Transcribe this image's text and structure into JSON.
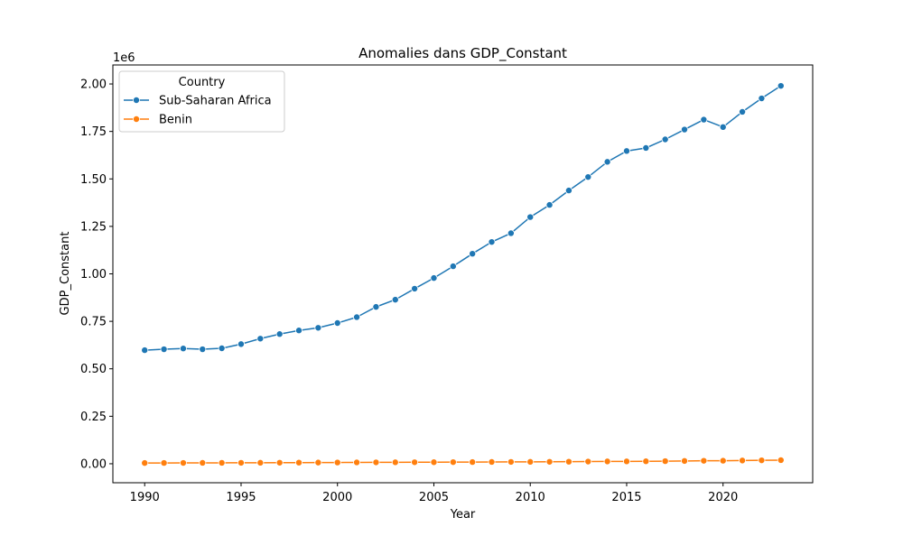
{
  "chart_data": {
    "type": "line",
    "title": "Anomalies dans GDP_Constant",
    "xlabel": "Year",
    "ylabel": "GDP_Constant",
    "y_offset_label": "1e6",
    "y_scale_factor": 1000000,
    "xlim": [
      1988.35,
      2024.65
    ],
    "ylim": [
      -0.1,
      2.1
    ],
    "x_ticks": [
      1990,
      1995,
      2000,
      2005,
      2010,
      2015,
      2020
    ],
    "y_ticks": [
      0.0,
      0.25,
      0.5,
      0.75,
      1.0,
      1.25,
      1.5,
      1.75,
      2.0
    ],
    "y_tick_labels": [
      "0.00",
      "0.25",
      "0.50",
      "0.75",
      "1.00",
      "1.25",
      "1.50",
      "1.75",
      "2.00"
    ],
    "grid": false,
    "legend": {
      "title": "Country",
      "placement": "top-left"
    },
    "x": [
      1990,
      1991,
      1992,
      1993,
      1994,
      1995,
      1996,
      1997,
      1998,
      1999,
      2000,
      2001,
      2002,
      2003,
      2004,
      2005,
      2006,
      2007,
      2008,
      2009,
      2010,
      2011,
      2012,
      2013,
      2014,
      2015,
      2016,
      2017,
      2018,
      2019,
      2020,
      2021,
      2022,
      2023
    ],
    "series": [
      {
        "name": "Sub-Saharan Africa",
        "color": "#1f77b4",
        "values": [
          0.598,
          0.603,
          0.607,
          0.603,
          0.608,
          0.63,
          0.659,
          0.683,
          0.702,
          0.716,
          0.741,
          0.772,
          0.826,
          0.864,
          0.922,
          0.978,
          1.04,
          1.106,
          1.168,
          1.214,
          1.299,
          1.363,
          1.439,
          1.51,
          1.59,
          1.647,
          1.663,
          1.708,
          1.76,
          1.812,
          1.773,
          1.853,
          1.924,
          1.99
        ]
      },
      {
        "name": "Benin",
        "color": "#ff7f0e",
        "values": [
          0.004,
          0.0042,
          0.0044,
          0.0046,
          0.0048,
          0.005,
          0.0053,
          0.0056,
          0.006,
          0.0063,
          0.0066,
          0.007,
          0.0073,
          0.0076,
          0.0079,
          0.0081,
          0.0085,
          0.0089,
          0.0094,
          0.0097,
          0.01,
          0.0103,
          0.0108,
          0.0115,
          0.0122,
          0.0124,
          0.013,
          0.0137,
          0.0146,
          0.0156,
          0.0159,
          0.017,
          0.018,
          0.019
        ]
      }
    ]
  }
}
